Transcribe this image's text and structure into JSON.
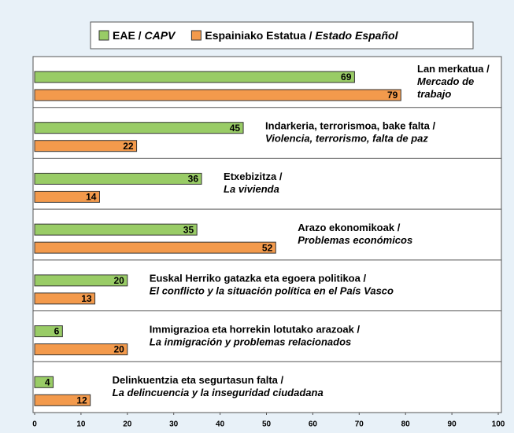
{
  "chart_data": {
    "type": "bar",
    "orientation": "horizontal",
    "categories": [
      [
        "Lan merkatua /",
        "Mercado de",
        "trabajo"
      ],
      [
        "Indarkeria, terrorismoa, bake falta /",
        "Violencia, terrorismo, falta de paz"
      ],
      [
        "Etxebizitza /",
        "La vivienda"
      ],
      [
        "Arazo ekonomikoak /",
        "Problemas  económicos"
      ],
      [
        "Euskal Herriko gatazka eta egoera politikoa /",
        "El conflicto y la situación política en el País Vasco"
      ],
      [
        "Immigrazioa eta horrekin lotutako arazoak /",
        "La inmigración y problemas relacionados"
      ],
      [
        "Delinkuentzia eta segurtasun falta /",
        "La delincuencia y la inseguridad ciudadana"
      ]
    ],
    "series": [
      {
        "name": [
          "EAE /",
          "CAPV"
        ],
        "color": "#99cc66",
        "values": [
          69,
          45,
          36,
          35,
          20,
          6,
          4
        ]
      },
      {
        "name": [
          "Espainiako Estatua /",
          "Estado Español"
        ],
        "color": "#f39a4c",
        "values": [
          79,
          22,
          14,
          52,
          13,
          20,
          12
        ]
      }
    ],
    "xlim": [
      0,
      100
    ],
    "xticks": [
      0,
      10,
      20,
      30,
      40,
      50,
      60,
      70,
      80,
      90,
      100
    ],
    "legend": "top"
  }
}
